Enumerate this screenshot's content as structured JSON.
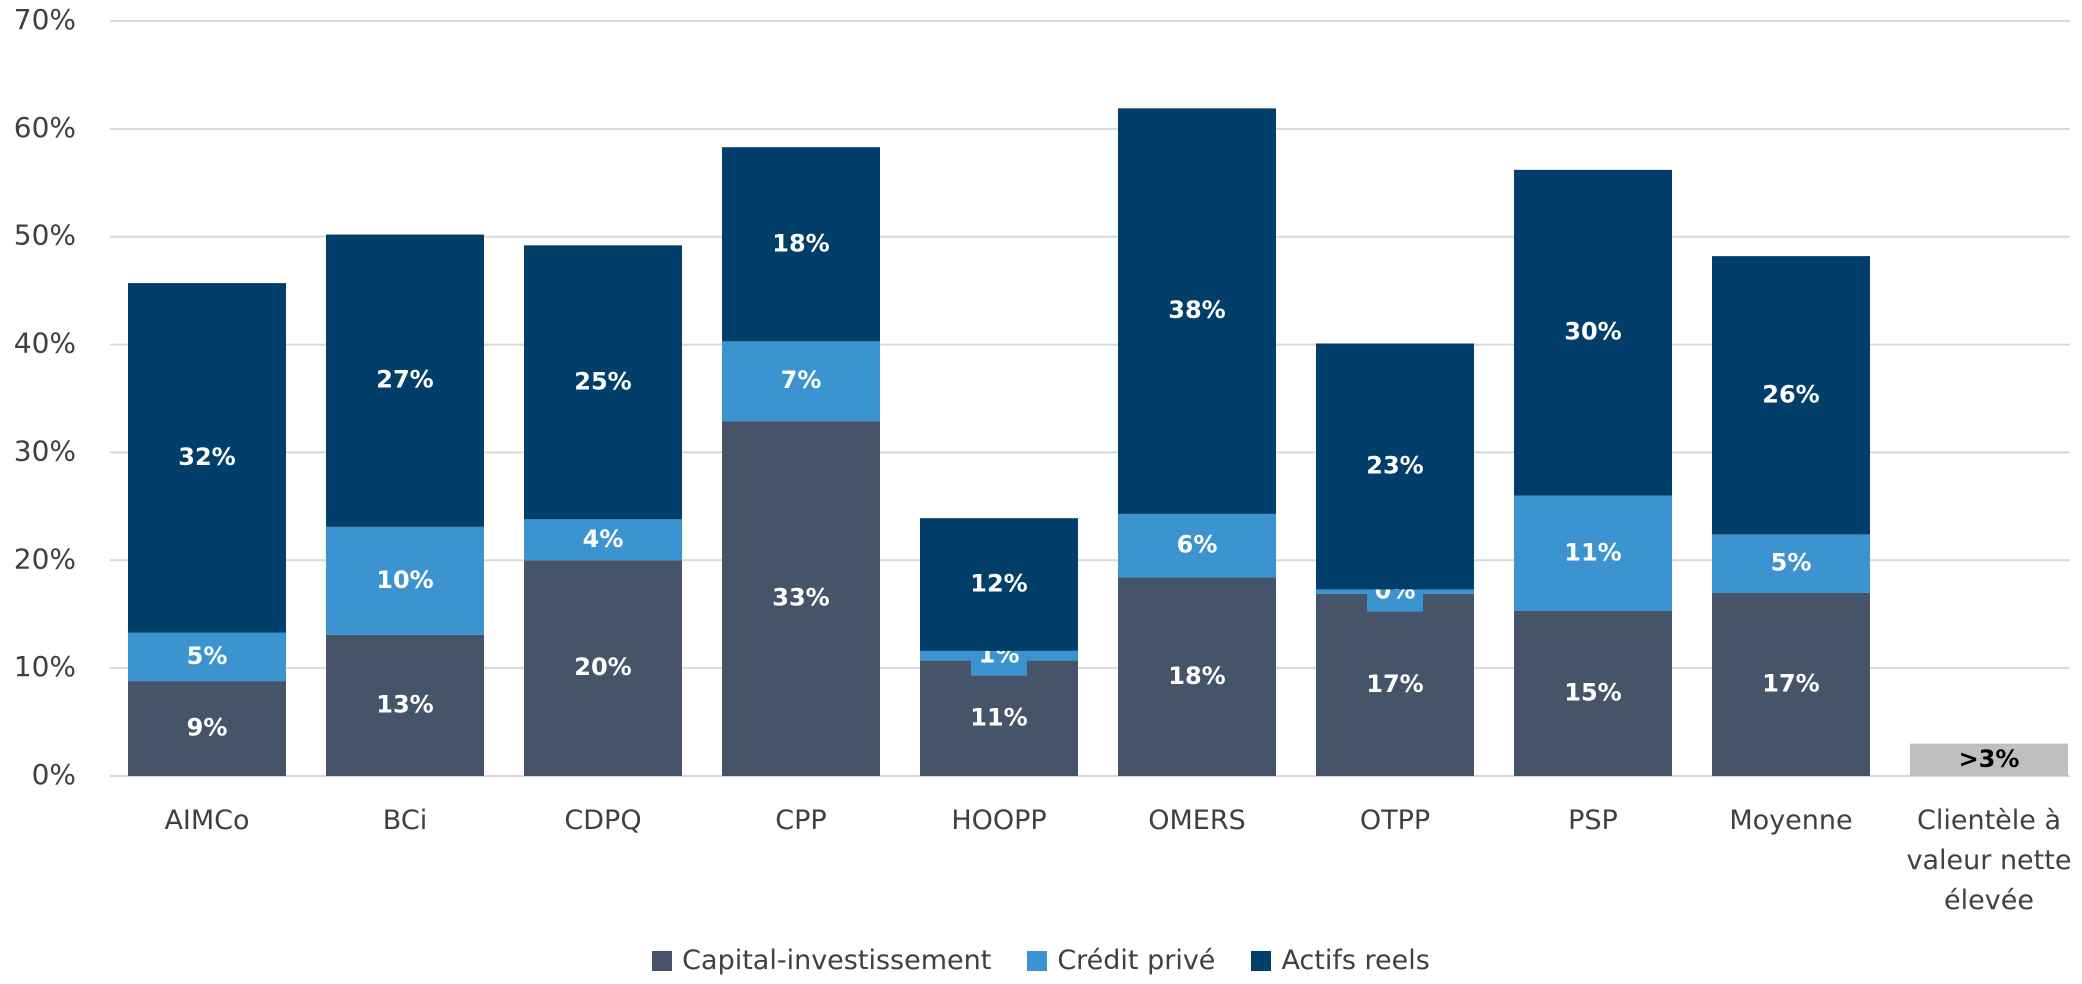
{
  "chart_data": {
    "type": "stacked_bar",
    "categories": [
      "AIMCo",
      "BCi",
      "CDPQ",
      "CPP",
      "HOOPP",
      "OMERS",
      "OTPP",
      "PSP",
      "Moyenne",
      "Clientèle à valeur nette élevée"
    ],
    "series": [
      {
        "name": "Capital-investissement",
        "color": "#465469",
        "values": [
          8.8,
          13.1,
          20.0,
          32.9,
          10.7,
          18.4,
          16.9,
          15.3,
          17.0,
          null
        ],
        "value_labels": [
          "9%",
          "13%",
          "20%",
          "33%",
          "11%",
          "18%",
          "17%",
          "15%",
          "17%",
          null
        ]
      },
      {
        "name": "Crédit privé",
        "color": "#3b93d0",
        "values": [
          4.5,
          10.0,
          3.8,
          7.4,
          0.9,
          5.9,
          0.4,
          10.7,
          5.4,
          null
        ],
        "value_labels": [
          "5%",
          "10%",
          "4%",
          "7%",
          "1%",
          "6%",
          "0%",
          "11%",
          "5%",
          null
        ]
      },
      {
        "name": "Actifs reels",
        "color": "#013e6a",
        "values": [
          32.4,
          27.1,
          25.4,
          18.0,
          12.3,
          37.6,
          22.8,
          30.2,
          25.8,
          null
        ],
        "value_labels": [
          "32%",
          "27%",
          "25%",
          "18%",
          "12%",
          "38%",
          "23%",
          "30%",
          "26%",
          null
        ]
      },
      {
        "color": "#bfbfbf",
        "values": [
          null,
          null,
          null,
          null,
          null,
          null,
          null,
          null,
          null,
          3.0
        ],
        "value_labels": [
          null,
          null,
          null,
          null,
          null,
          null,
          null,
          null,
          null,
          ">3%"
        ]
      }
    ],
    "ylim": [
      0,
      70
    ],
    "yticks": [
      {
        "value": 0,
        "label": "0%"
      },
      {
        "value": 10,
        "label": "10%"
      },
      {
        "value": 20,
        "label": "20%"
      },
      {
        "value": 30,
        "label": "30%"
      },
      {
        "value": 40,
        "label": "40%"
      },
      {
        "value": 50,
        "label": "50%"
      },
      {
        "value": 60,
        "label": "60%"
      },
      {
        "value": 70,
        "label": "70%"
      }
    ],
    "grid": true,
    "legend": "bottom"
  }
}
